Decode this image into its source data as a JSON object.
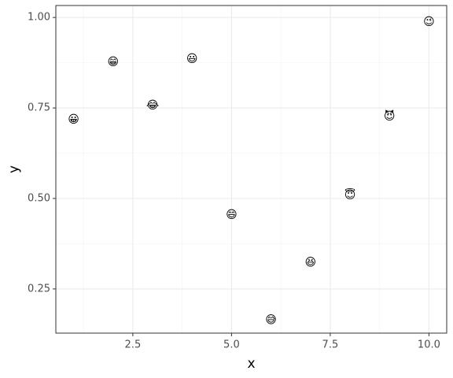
{
  "chart_data": {
    "type": "scatter",
    "x_label": "x",
    "y_label": "y",
    "x": [
      1,
      2,
      3,
      4,
      5,
      6,
      7,
      8,
      9,
      10
    ],
    "values": [
      0.72,
      0.878,
      0.759,
      0.887,
      0.457,
      0.166,
      0.325,
      0.511,
      0.728,
      0.989
    ],
    "labels": [
      "😀",
      "😁",
      "😂",
      "😃",
      "😄",
      "😅",
      "😆",
      "😇",
      "😈",
      "😉"
    ],
    "xlim": [
      0.55,
      10.45
    ],
    "ylim": [
      0.128,
      1.033
    ],
    "xticks": [
      2.5,
      {
        "value": 5,
        "label": "5.0"
      },
      7.5,
      {
        "value": 10,
        "label": "10.0"
      }
    ],
    "yticks": [
      0.25,
      {
        "value": 0.5,
        "label": "0.50"
      },
      0.75,
      {
        "value": 1,
        "label": "1.00"
      }
    ],
    "xminor": [
      1.25,
      3.75,
      6.25,
      8.75
    ],
    "yminor": [
      0.375,
      0.625,
      0.875
    ],
    "grid": true
  }
}
